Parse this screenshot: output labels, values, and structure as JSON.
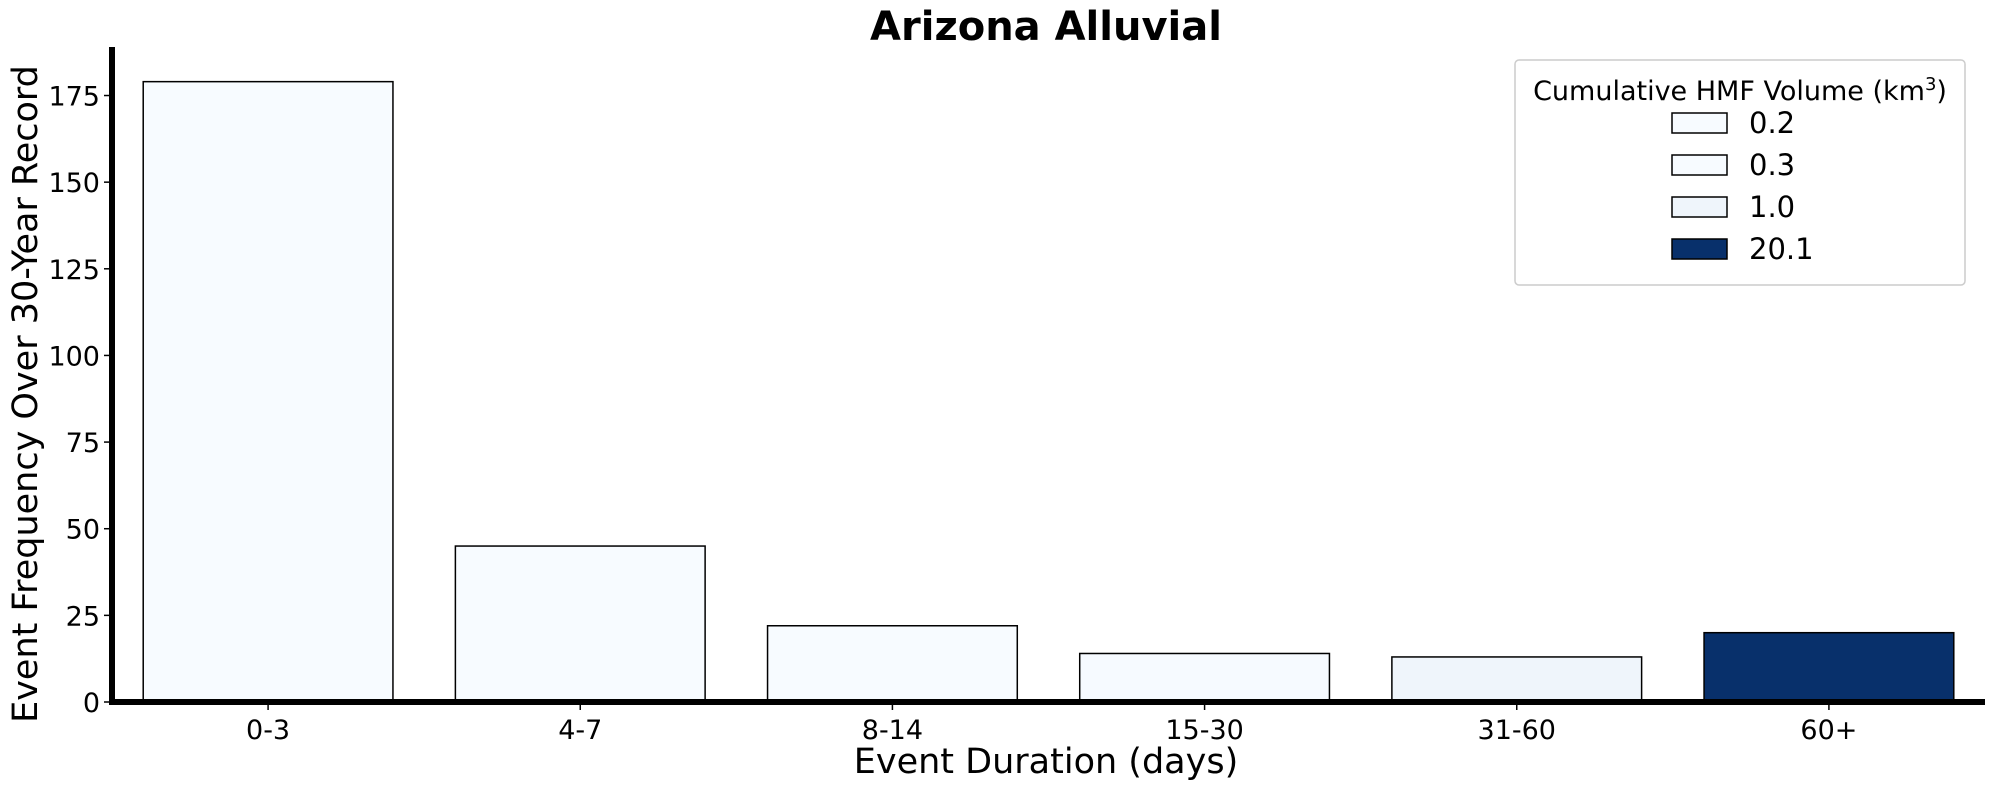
{
  "chart_data": {
    "type": "bar",
    "title": "Arizona Alluvial",
    "xlabel": "Event Duration (days)",
    "ylabel": "Event Frequency Over 30-Year Record",
    "categories": [
      "0-3",
      "4-7",
      "8-14",
      "15-30",
      "31-60",
      "60+"
    ],
    "values": [
      179,
      45,
      22,
      14,
      13,
      20
    ],
    "bar_colors": [
      "#f7fbff",
      "#f7fbff",
      "#f7fbff",
      "#f6faff",
      "#eff5fb",
      "#08306b"
    ],
    "ylim": [
      0,
      189
    ],
    "yticks": [
      0,
      25,
      50,
      75,
      100,
      125,
      150,
      175
    ],
    "grid": false,
    "legend": {
      "title": "Cumulative HMF Volume (km",
      "title_superscript": "3",
      "title_suffix": ")",
      "placement": "top-right",
      "entries": [
        {
          "label": "0.2",
          "color": "#f7fbff"
        },
        {
          "label": "0.3",
          "color": "#f7fbff"
        },
        {
          "label": "1.0",
          "color": "#eff5fb"
        },
        {
          "label": "20.1",
          "color": "#08306b"
        }
      ]
    }
  }
}
